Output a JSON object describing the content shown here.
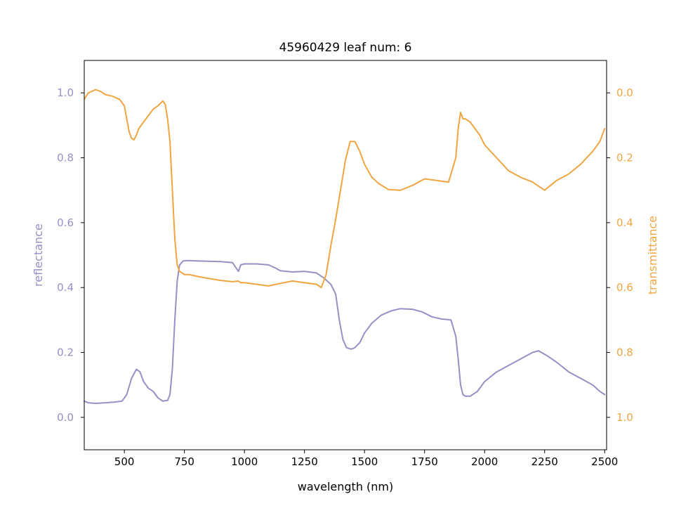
{
  "chart_data": {
    "type": "line",
    "title": "45960429 leaf num: 6",
    "xlabel": "wavelength (nm)",
    "ylabel_left": "reflectance",
    "ylabel_right": "transmittance",
    "xlim": [
      333,
      2508
    ],
    "ylim_left": [
      -0.1,
      1.1
    ],
    "ylim_right": [
      1.1,
      -0.1
    ],
    "right_axis_inverted": true,
    "x_ticks": [
      500,
      750,
      1000,
      1250,
      1500,
      1750,
      2000,
      2250,
      2500
    ],
    "x_tick_labels": [
      "500",
      "750",
      "1000",
      "1250",
      "1500",
      "1750",
      "2000",
      "2250",
      "2500"
    ],
    "y_ticks_left": [
      0.0,
      0.2,
      0.4,
      0.6,
      0.8,
      1.0
    ],
    "y_tick_labels_left": [
      "0.0",
      "0.2",
      "0.4",
      "0.6",
      "0.8",
      "1.0"
    ],
    "y_ticks_right": [
      0.0,
      0.2,
      0.4,
      0.6,
      0.8,
      1.0
    ],
    "y_tick_labels_right": [
      "0.0",
      "0.2",
      "0.4",
      "0.6",
      "0.8",
      "1.0"
    ],
    "grid": false,
    "legend": "none",
    "colors": {
      "reflectance": "#9690c6",
      "transmittance": "#f0a540"
    },
    "series": [
      {
        "axis": "left",
        "color": "#9690c6",
        "x": [
          333,
          350,
          380,
          420,
          460,
          490,
          510,
          530,
          550,
          565,
          580,
          600,
          620,
          640,
          660,
          680,
          690,
          700,
          710,
          720,
          730,
          745,
          760,
          800,
          850,
          900,
          950,
          975,
          985,
          1000,
          1050,
          1100,
          1130,
          1150,
          1200,
          1250,
          1300,
          1330,
          1360,
          1380,
          1395,
          1410,
          1425,
          1445,
          1460,
          1480,
          1500,
          1530,
          1570,
          1610,
          1650,
          1700,
          1740,
          1780,
          1820,
          1860,
          1880,
          1890,
          1900,
          1910,
          1920,
          1940,
          1970,
          2000,
          2050,
          2100,
          2150,
          2200,
          2225,
          2260,
          2300,
          2350,
          2400,
          2450,
          2480,
          2500
        ],
        "y": [
          0.05,
          0.045,
          0.043,
          0.045,
          0.047,
          0.05,
          0.07,
          0.12,
          0.148,
          0.14,
          0.11,
          0.09,
          0.08,
          0.06,
          0.05,
          0.052,
          0.07,
          0.15,
          0.3,
          0.42,
          0.47,
          0.482,
          0.483,
          0.482,
          0.481,
          0.48,
          0.477,
          0.45,
          0.47,
          0.473,
          0.473,
          0.47,
          0.46,
          0.452,
          0.448,
          0.45,
          0.445,
          0.43,
          0.41,
          0.38,
          0.3,
          0.24,
          0.215,
          0.21,
          0.215,
          0.23,
          0.26,
          0.29,
          0.315,
          0.328,
          0.335,
          0.333,
          0.325,
          0.31,
          0.303,
          0.3,
          0.25,
          0.18,
          0.1,
          0.07,
          0.065,
          0.065,
          0.08,
          0.11,
          0.14,
          0.16,
          0.18,
          0.2,
          0.205,
          0.19,
          0.17,
          0.14,
          0.12,
          0.1,
          0.08,
          0.07
        ]
      },
      {
        "axis": "right",
        "color": "#f0a540",
        "x": [
          333,
          350,
          380,
          400,
          420,
          450,
          480,
          500,
          510,
          520,
          530,
          540,
          550,
          560,
          570,
          580,
          600,
          620,
          640,
          660,
          670,
          680,
          690,
          700,
          710,
          720,
          730,
          750,
          770,
          800,
          850,
          900,
          950,
          975,
          985,
          1000,
          1050,
          1100,
          1150,
          1200,
          1250,
          1300,
          1320,
          1340,
          1360,
          1380,
          1400,
          1420,
          1440,
          1460,
          1480,
          1500,
          1530,
          1560,
          1600,
          1650,
          1700,
          1750,
          1800,
          1850,
          1880,
          1890,
          1900,
          1910,
          1920,
          1940,
          1960,
          1980,
          2000,
          2050,
          2100,
          2150,
          2200,
          2250,
          2300,
          2350,
          2400,
          2450,
          2480,
          2500
        ],
        "y": [
          0.02,
          0.0,
          -0.01,
          -0.005,
          0.005,
          0.01,
          0.02,
          0.04,
          0.08,
          0.12,
          0.14,
          0.145,
          0.13,
          0.11,
          0.1,
          0.09,
          0.07,
          0.05,
          0.04,
          0.025,
          0.035,
          0.08,
          0.15,
          0.3,
          0.45,
          0.53,
          0.55,
          0.56,
          0.56,
          0.565,
          0.572,
          0.578,
          0.582,
          0.58,
          0.585,
          0.585,
          0.59,
          0.595,
          0.587,
          0.58,
          0.585,
          0.59,
          0.6,
          0.56,
          0.47,
          0.39,
          0.3,
          0.21,
          0.15,
          0.15,
          0.18,
          0.22,
          0.26,
          0.28,
          0.298,
          0.3,
          0.285,
          0.265,
          0.27,
          0.275,
          0.2,
          0.11,
          0.06,
          0.08,
          0.08,
          0.09,
          0.11,
          0.13,
          0.16,
          0.2,
          0.24,
          0.26,
          0.275,
          0.3,
          0.27,
          0.25,
          0.22,
          0.18,
          0.15,
          0.11
        ]
      }
    ]
  }
}
